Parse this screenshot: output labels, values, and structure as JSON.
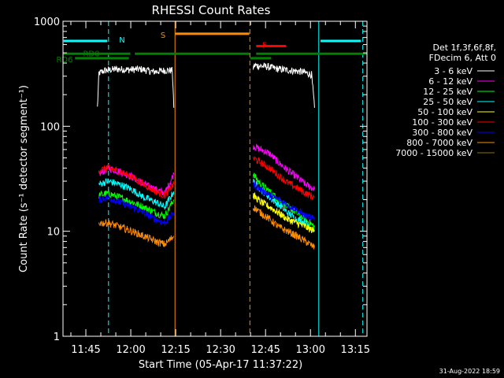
{
  "chart_data": {
    "type": "line",
    "title": "RHESSI Count Rates",
    "xlabel": "Start Time (05-Apr-17 11:37:22)",
    "ylabel": "Count Rate (s⁻¹ detector segment⁻¹)",
    "y_scale": "log",
    "ylim": [
      1,
      1000
    ],
    "xlim_minutes_after_start": [
      0,
      101.5
    ],
    "x_axis_start": "11:37:22",
    "x_ticks": [
      "11:45",
      "12:00",
      "12:15",
      "12:30",
      "12:45",
      "13:00",
      "13:15"
    ],
    "x_tick_minutes": [
      7.63,
      22.63,
      37.63,
      52.63,
      67.63,
      82.63,
      97.63
    ],
    "y_ticks": [
      "1",
      "10",
      "100",
      "1000"
    ],
    "y_tick_values": [
      1,
      10,
      100,
      1000
    ],
    "legend_header": [
      "Det 1f,3f,6f,8f,",
      "FDecim 6, Att 0"
    ],
    "legend_position": "right",
    "series": [
      {
        "name": "3 - 6 keV",
        "color": "#ffffff",
        "segments": [
          {
            "x": [
              11.5,
              12,
              14,
              18,
              22,
              26,
              30,
              34,
              36.5,
              37
            ],
            "y": [
              150,
              320,
              340,
              350,
              345,
              350,
              330,
              340,
              340,
              150
            ]
          },
          {
            "x": [
              63.5,
              64,
              68,
              72,
              76,
              80,
              83,
              84
            ],
            "y": [
              360,
              380,
              370,
              350,
              340,
              330,
              310,
              150
            ]
          }
        ]
      },
      {
        "name": "6 - 12 keV",
        "color": "#ff00ff",
        "segments": [
          {
            "x": [
              12,
              15,
              19,
              23,
              27,
              31,
              34,
              37
            ],
            "y": [
              35,
              40,
              37,
              33,
              28,
              25,
              23,
              35
            ]
          },
          {
            "x": [
              63.5,
              66,
              69,
              72,
              75,
              78,
              81,
              84
            ],
            "y": [
              65,
              60,
              55,
              45,
              38,
              33,
              28,
              25
            ]
          }
        ]
      },
      {
        "name": "12 - 25 keV",
        "color": "#00ff00",
        "segments": [
          {
            "x": [
              12,
              15,
              19,
              23,
              27,
              31,
              34,
              37
            ],
            "y": [
              22,
              23,
              21,
              19,
              17,
              15,
              14,
              20
            ]
          },
          {
            "x": [
              63.5,
              66,
              69,
              72,
              75,
              78,
              81,
              84
            ],
            "y": [
              35,
              28,
              24,
              20,
              17,
              15,
              13,
              11
            ]
          }
        ]
      },
      {
        "name": "25 - 50 keV",
        "color": "#00ffff",
        "segments": [
          {
            "x": [
              12,
              15,
              19,
              23,
              27,
              31,
              34,
              37
            ],
            "y": [
              28,
              30,
              28,
              25,
              21,
              19,
              17,
              24
            ]
          },
          {
            "x": [
              63.5,
              66,
              69,
              72,
              75,
              78,
              81,
              84
            ],
            "y": [
              30,
              25,
              21,
              18,
              15,
              13,
              12,
              10
            ]
          }
        ]
      },
      {
        "name": "50 - 100 keV",
        "color": "#ffff00",
        "segments": [
          {
            "x": [
              63.5,
              66,
              69,
              72,
              75,
              78,
              81,
              84
            ],
            "y": [
              22,
              19,
              17,
              15,
              13,
              12,
              11,
              10
            ]
          }
        ]
      },
      {
        "name": "100 - 300 keV",
        "color": "#ff0000",
        "segments": [
          {
            "x": [
              12,
              15,
              19,
              23,
              27,
              31,
              34,
              37
            ],
            "y": [
              38,
              40,
              37,
              33,
              28,
              24,
              22,
              28
            ]
          },
          {
            "x": [
              63.5,
              66,
              69,
              72,
              75,
              78,
              81,
              84
            ],
            "y": [
              50,
              45,
              40,
              34,
              29,
              26,
              23,
              21
            ]
          }
        ]
      },
      {
        "name": "300 - 800 keV",
        "color": "#0000ff",
        "segments": [
          {
            "x": [
              12,
              15,
              19,
              23,
              27,
              31,
              34,
              37
            ],
            "y": [
              20,
              21,
              19,
              17,
              15,
              13,
              12,
              15
            ]
          },
          {
            "x": [
              63.5,
              66,
              69,
              72,
              75,
              78,
              81,
              84
            ],
            "y": [
              28,
              25,
              22,
              20,
              18,
              16,
              14,
              13
            ]
          }
        ]
      },
      {
        "name": "800 - 7000 keV",
        "color": "#ff8c00",
        "segments": [
          {
            "x": [
              12,
              15,
              19,
              23,
              27,
              31,
              34,
              37
            ],
            "y": [
              12,
              12,
              11,
              10,
              9,
              8,
              7.5,
              9
            ]
          },
          {
            "x": [
              63.5,
              66,
              69,
              72,
              75,
              78,
              81,
              84
            ],
            "y": [
              17,
              15,
              13,
              11,
              10,
              9,
              8,
              7
            ]
          }
        ]
      },
      {
        "name": "7000 - 15000 keV",
        "color": "#8b7500",
        "segments": []
      }
    ],
    "vertical_lines": [
      {
        "x": 0,
        "color": "#00ffff",
        "style": "solid"
      },
      {
        "x": 15.2,
        "color": "#00ffff",
        "style": "dashed"
      },
      {
        "x": 37.4,
        "color": "#ff8c00",
        "style": "solid"
      },
      {
        "x": 62.4,
        "color": "#ff8c00",
        "style": "dashed"
      },
      {
        "x": 85.4,
        "color": "#00ffff",
        "style": "solid"
      },
      {
        "x": 100.1,
        "color": "#00ffff",
        "style": "dashed"
      }
    ],
    "flag_bars": [
      {
        "label": "N",
        "color": "#00ffff",
        "y": 650,
        "segments": [
          [
            0.2,
            14.8
          ],
          [
            86,
            99.5
          ]
        ]
      },
      {
        "label": "S",
        "color": "#ff8c00",
        "y": 760,
        "segments": [
          [
            37.5,
            62.2
          ]
        ]
      },
      {
        "label": "F",
        "color": "#ff0000",
        "y": 580,
        "segments": [
          [
            64.5,
            74.5
          ]
        ]
      },
      {
        "label": "RD0",
        "color": "#008000",
        "y": 490,
        "segments": [
          [
            0.2,
            22.5
          ],
          [
            24,
            62.2
          ],
          [
            64.5,
            101.5
          ]
        ]
      },
      {
        "label": "RD6",
        "color": "#008000",
        "y": 445,
        "segments": [
          [
            4,
            22
          ],
          [
            62.5,
            69.5
          ]
        ]
      }
    ]
  },
  "footer": {
    "timestamp": "31-Aug-2022 18:59"
  }
}
